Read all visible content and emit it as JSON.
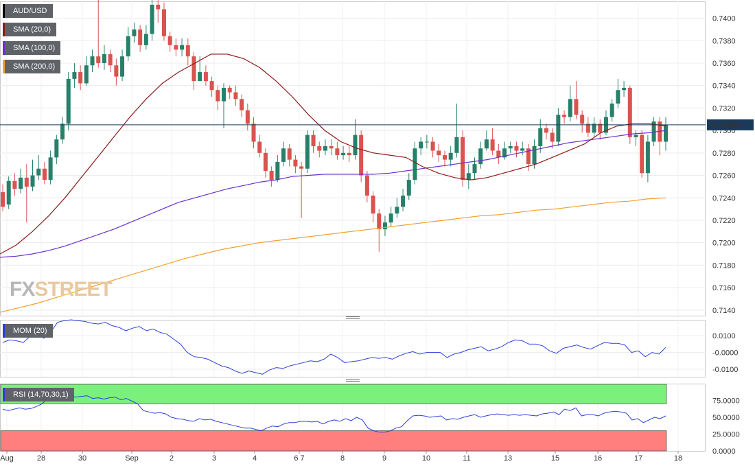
{
  "colors": {
    "up": "#26806a",
    "down": "#d9534f",
    "sma20": "#8b1a1a",
    "sma100": "#6a2fcf",
    "sma200": "#f0a030",
    "price_line": "#1a3a5a",
    "mom_line": "#2c3fd8",
    "rsi_line": "#2c3fd8",
    "rsi_overbought": "#7cf07c",
    "rsi_oversold": "#ff7f7f"
  },
  "legend": {
    "pair": "AUD/USD",
    "sma20": "SMA (20,0)",
    "sma100": "SMA (100,0)",
    "sma200": "SMA (200,0)",
    "mom": "MOM (20)",
    "rsi": "RSI (14,70,30,1)"
  },
  "watermark": {
    "fx": "FX",
    "street": "STREET"
  },
  "chart_data": [
    {
      "type": "candlestick",
      "title": "AUD/USD",
      "last_price_label": "0.730500",
      "ylim": [
        0.7135,
        0.7415
      ],
      "y_ticks": [
        "0.7400",
        "0.7380",
        "0.7360",
        "0.7340",
        "0.7320",
        "0.7300",
        "0.7280",
        "0.7260",
        "0.7240",
        "0.7220",
        "0.7200",
        "0.7180",
        "0.7160",
        "0.7140"
      ],
      "x_labels": [
        "Aug",
        "28",
        "30",
        "Sep",
        "2",
        "3",
        "4",
        "6 7",
        "8",
        "9",
        "10",
        "11",
        "13",
        "15",
        "16",
        "17",
        "18"
      ],
      "candles": [
        [
          0.7245,
          0.7232,
          0.7252,
          0.7228
        ],
        [
          0.7234,
          0.7255,
          0.7259,
          0.723
        ],
        [
          0.7255,
          0.7248,
          0.7262,
          0.7242
        ],
        [
          0.7248,
          0.7258,
          0.7266,
          0.7244
        ],
        [
          0.7258,
          0.725,
          0.727,
          0.7218
        ],
        [
          0.725,
          0.726,
          0.7274,
          0.7246
        ],
        [
          0.726,
          0.7266,
          0.7278,
          0.7256
        ],
        [
          0.7266,
          0.7256,
          0.7272,
          0.7252
        ],
        [
          0.7256,
          0.7276,
          0.7282,
          0.7252
        ],
        [
          0.7276,
          0.7292,
          0.7296,
          0.727
        ],
        [
          0.7292,
          0.7306,
          0.7312,
          0.7288
        ],
        [
          0.7306,
          0.7346,
          0.7352,
          0.73
        ],
        [
          0.7346,
          0.7352,
          0.736,
          0.7338
        ],
        [
          0.7352,
          0.7342,
          0.7358,
          0.7336
        ],
        [
          0.7342,
          0.7358,
          0.7366,
          0.734
        ],
        [
          0.7358,
          0.7366,
          0.7372,
          0.7352
        ],
        [
          0.7366,
          0.736,
          0.7418,
          0.7356
        ],
        [
          0.736,
          0.7368,
          0.7376,
          0.7354
        ],
        [
          0.7368,
          0.7358,
          0.7372,
          0.7352
        ],
        [
          0.7358,
          0.7348,
          0.7364,
          0.734
        ],
        [
          0.7348,
          0.7366,
          0.7372,
          0.7344
        ],
        [
          0.7366,
          0.7384,
          0.7392,
          0.7362
        ],
        [
          0.7384,
          0.739,
          0.7396,
          0.7378
        ],
        [
          0.739,
          0.7376,
          0.7394,
          0.737
        ],
        [
          0.7376,
          0.7386,
          0.7394,
          0.7372
        ],
        [
          0.7386,
          0.7412,
          0.7418,
          0.738
        ],
        [
          0.7412,
          0.7408,
          0.7416,
          0.7396
        ],
        [
          0.7408,
          0.7384,
          0.7414,
          0.738
        ],
        [
          0.7384,
          0.7376,
          0.7388,
          0.737
        ],
        [
          0.7376,
          0.7372,
          0.7382,
          0.7366
        ],
        [
          0.7372,
          0.7376,
          0.7382,
          0.7366
        ],
        [
          0.7376,
          0.7366,
          0.7382,
          0.7358
        ],
        [
          0.7366,
          0.7344,
          0.737,
          0.7336
        ],
        [
          0.7344,
          0.7352,
          0.7366,
          0.7346
        ],
        [
          0.7352,
          0.7344,
          0.7358,
          0.734
        ],
        [
          0.7344,
          0.7336,
          0.7348,
          0.733
        ],
        [
          0.7336,
          0.7326,
          0.734,
          0.7318
        ],
        [
          0.7326,
          0.7338,
          0.7342,
          0.7302
        ],
        [
          0.7338,
          0.7334,
          0.734,
          0.7328
        ],
        [
          0.7334,
          0.7328,
          0.734,
          0.7322
        ],
        [
          0.7328,
          0.7318,
          0.7332,
          0.7312
        ],
        [
          0.7318,
          0.7306,
          0.7324,
          0.73
        ],
        [
          0.7306,
          0.729,
          0.7312,
          0.7284
        ],
        [
          0.729,
          0.728,
          0.7296,
          0.7276
        ],
        [
          0.728,
          0.7264,
          0.7284,
          0.7258
        ],
        [
          0.7264,
          0.7256,
          0.7268,
          0.725
        ],
        [
          0.7256,
          0.7272,
          0.7278,
          0.7254
        ],
        [
          0.7272,
          0.7284,
          0.729,
          0.7268
        ],
        [
          0.7284,
          0.7274,
          0.7288,
          0.7268
        ],
        [
          0.7274,
          0.7268,
          0.7278,
          0.7262
        ],
        [
          0.7268,
          0.7266,
          0.7272,
          0.7222
        ],
        [
          0.7266,
          0.7296,
          0.73,
          0.7262
        ],
        [
          0.7296,
          0.7286,
          0.73,
          0.728
        ],
        [
          0.7286,
          0.7282,
          0.729,
          0.7276
        ],
        [
          0.7282,
          0.7286,
          0.7292,
          0.7278
        ],
        [
          0.7286,
          0.7284,
          0.7292,
          0.7278
        ],
        [
          0.7284,
          0.7278,
          0.729,
          0.7274
        ],
        [
          0.7278,
          0.728,
          0.7286,
          0.7274
        ],
        [
          0.728,
          0.7278,
          0.7286,
          0.7272
        ],
        [
          0.7278,
          0.7296,
          0.731,
          0.7274
        ],
        [
          0.7296,
          0.726,
          0.73,
          0.7254
        ],
        [
          0.726,
          0.7242,
          0.7264,
          0.7236
        ],
        [
          0.7242,
          0.7226,
          0.7246,
          0.7218
        ],
        [
          0.7226,
          0.7212,
          0.723,
          0.7192
        ],
        [
          0.7212,
          0.7218,
          0.7224,
          0.7206
        ],
        [
          0.7218,
          0.7226,
          0.7232,
          0.7214
        ],
        [
          0.7226,
          0.7232,
          0.724,
          0.7222
        ],
        [
          0.7232,
          0.7242,
          0.7248,
          0.7228
        ],
        [
          0.7242,
          0.7256,
          0.7262,
          0.7238
        ],
        [
          0.7256,
          0.7284,
          0.729,
          0.7252
        ],
        [
          0.7284,
          0.729,
          0.7294,
          0.7278
        ],
        [
          0.729,
          0.729,
          0.7296,
          0.7284
        ],
        [
          0.729,
          0.7282,
          0.7294,
          0.7276
        ],
        [
          0.7282,
          0.7278,
          0.7288,
          0.7272
        ],
        [
          0.7278,
          0.7274,
          0.7282,
          0.7268
        ],
        [
          0.7274,
          0.728,
          0.7286,
          0.7268
        ],
        [
          0.728,
          0.7294,
          0.7324,
          0.7276
        ],
        [
          0.7294,
          0.7256,
          0.73,
          0.725
        ],
        [
          0.7256,
          0.7262,
          0.727,
          0.7248
        ],
        [
          0.7262,
          0.727,
          0.7276,
          0.7256
        ],
        [
          0.727,
          0.7284,
          0.729,
          0.7266
        ],
        [
          0.7284,
          0.7292,
          0.73,
          0.7282
        ],
        [
          0.7292,
          0.7282,
          0.7302,
          0.7278
        ],
        [
          0.7282,
          0.7276,
          0.7288,
          0.727
        ],
        [
          0.7276,
          0.7284,
          0.729,
          0.7274
        ],
        [
          0.7284,
          0.7286,
          0.729,
          0.728
        ],
        [
          0.7286,
          0.7282,
          0.729,
          0.7276
        ],
        [
          0.7282,
          0.7284,
          0.729,
          0.7278
        ],
        [
          0.7284,
          0.727,
          0.7288,
          0.7264
        ],
        [
          0.727,
          0.7286,
          0.7292,
          0.7266
        ],
        [
          0.7286,
          0.7302,
          0.731,
          0.728
        ],
        [
          0.7302,
          0.7298,
          0.7306,
          0.7292
        ],
        [
          0.7298,
          0.729,
          0.7302,
          0.7284
        ],
        [
          0.729,
          0.7314,
          0.732,
          0.7286
        ],
        [
          0.7314,
          0.7312,
          0.7318,
          0.7306
        ],
        [
          0.7312,
          0.7328,
          0.734,
          0.7308
        ],
        [
          0.7328,
          0.7314,
          0.7344,
          0.731
        ],
        [
          0.7314,
          0.7306,
          0.7318,
          0.7298
        ],
        [
          0.7306,
          0.7298,
          0.7312,
          0.7294
        ],
        [
          0.7298,
          0.7306,
          0.7312,
          0.7294
        ],
        [
          0.7306,
          0.7298,
          0.731,
          0.7292
        ],
        [
          0.7298,
          0.7312,
          0.7318,
          0.7296
        ],
        [
          0.7312,
          0.7324,
          0.7328,
          0.7308
        ],
        [
          0.7324,
          0.7336,
          0.7346,
          0.732
        ],
        [
          0.7336,
          0.7338,
          0.7344,
          0.733
        ],
        [
          0.7338,
          0.7294,
          0.734,
          0.7288
        ],
        [
          0.7294,
          0.7296,
          0.73,
          0.7286
        ],
        [
          0.7296,
          0.7262,
          0.73,
          0.7258
        ],
        [
          0.7262,
          0.729,
          0.7296,
          0.7254
        ],
        [
          0.729,
          0.7308,
          0.7312,
          0.7286
        ],
        [
          0.7308,
          0.729,
          0.7312,
          0.7278
        ],
        [
          0.729,
          0.7305,
          0.7312,
          0.7282
        ]
      ],
      "sma20": [
        0.719,
        0.7198,
        0.721,
        0.7224,
        0.724,
        0.7258,
        0.7276,
        0.7294,
        0.7312,
        0.7328,
        0.7342,
        0.7352,
        0.736,
        0.7368,
        0.7368,
        0.7364,
        0.7356,
        0.7344,
        0.733,
        0.7314,
        0.73,
        0.729,
        0.7284,
        0.728,
        0.7278,
        0.7276,
        0.7268,
        0.7262,
        0.7258,
        0.7256,
        0.7258,
        0.7262,
        0.7266,
        0.727,
        0.7276,
        0.7282,
        0.7288,
        0.7298,
        0.7304,
        0.7306,
        0.7306,
        0.7304
      ],
      "sma100": [
        0.7187,
        0.7188,
        0.719,
        0.7193,
        0.7197,
        0.7202,
        0.7207,
        0.7212,
        0.7218,
        0.7224,
        0.723,
        0.7236,
        0.724,
        0.7244,
        0.7248,
        0.7251,
        0.7254,
        0.7256,
        0.7259,
        0.726,
        0.7261,
        0.7261,
        0.7261,
        0.7261,
        0.7262,
        0.7264,
        0.7266,
        0.7268,
        0.727,
        0.7272,
        0.7274,
        0.7277,
        0.728,
        0.7283,
        0.7286,
        0.7289,
        0.7291,
        0.7293,
        0.7295,
        0.7297,
        0.7298,
        0.73
      ],
      "sma200": [
        0.7138,
        0.7142,
        0.7146,
        0.7151,
        0.7156,
        0.7161,
        0.7166,
        0.7171,
        0.7176,
        0.7181,
        0.7186,
        0.719,
        0.7194,
        0.7197,
        0.72,
        0.7202,
        0.7204,
        0.7206,
        0.7208,
        0.721,
        0.7212,
        0.7214,
        0.7216,
        0.7218,
        0.722,
        0.7222,
        0.7224,
        0.7225,
        0.7227,
        0.7229,
        0.723,
        0.7232,
        0.7234,
        0.7236,
        0.7237,
        0.7239,
        0.724
      ],
      "current_price": 0.7305
    },
    {
      "type": "line",
      "title": "MOM (20)",
      "ylim": [
        -0.0145,
        0.0195
      ],
      "y_ticks": [
        "0.0100",
        "-0.0000",
        "-0.0100"
      ],
      "values": [
        0.006,
        0.0075,
        0.007,
        0.006,
        0.0095,
        0.011,
        0.0085,
        0.012,
        0.018,
        0.019,
        0.0195,
        0.019,
        0.0185,
        0.0175,
        0.017,
        0.018,
        0.016,
        0.015,
        0.013,
        0.0145,
        0.0155,
        0.013,
        0.014,
        0.012,
        0.011,
        0.008,
        0.005,
        0.0,
        -0.0025,
        -0.003,
        -0.004,
        -0.006,
        -0.008,
        -0.009,
        -0.011,
        -0.0125,
        -0.011,
        -0.012,
        -0.013,
        -0.0105,
        -0.009,
        -0.0095,
        -0.008,
        -0.007,
        -0.006,
        -0.005,
        -0.0055,
        -0.004,
        -0.001,
        -0.003,
        -0.006,
        -0.0055,
        -0.005,
        -0.004,
        -0.003,
        -0.0035,
        -0.003,
        -0.004,
        -0.002,
        -0.0005,
        0.0005,
        -0.001,
        0.0,
        0.0,
        0.0,
        -0.003,
        -0.001,
        0.0,
        0.0015,
        0.0025,
        0.0035,
        0.001,
        0.002,
        0.0035,
        0.006,
        0.0075,
        0.007,
        0.005,
        0.005,
        0.004,
        0.001,
        -0.0005,
        0.0025,
        0.0035,
        0.0045,
        0.003,
        0.002,
        0.004,
        0.006,
        0.0055,
        0.0055,
        0.0045,
        0.0,
        0.001,
        -0.0025,
        0.0,
        -0.001,
        0.003
      ]
    },
    {
      "type": "line",
      "title": "RSI (14,70,30,1)",
      "ylim": [
        0,
        100
      ],
      "y_ticks": [
        "75.0000",
        "50.0000",
        "25.0000",
        "0.0000"
      ],
      "overbought": 70,
      "oversold": 30,
      "values": [
        62,
        60,
        62,
        64,
        62,
        63,
        66,
        70,
        78,
        80,
        82,
        83,
        82,
        80,
        81,
        82,
        78,
        79,
        77,
        79,
        80,
        76,
        78,
        74,
        70,
        60,
        58,
        56,
        57,
        55,
        50,
        48,
        47,
        45,
        44,
        48,
        46,
        47,
        44,
        42,
        40,
        38,
        36,
        34,
        34,
        32,
        30,
        34,
        37,
        36,
        40,
        42,
        42,
        44,
        44,
        43,
        44,
        40,
        44,
        46,
        44,
        48,
        45,
        50,
        46,
        34,
        30,
        28,
        28,
        30,
        34,
        36,
        45,
        52,
        53,
        52,
        50,
        51,
        52,
        46,
        48,
        47,
        50,
        52,
        54,
        50,
        52,
        54,
        55,
        54,
        53,
        54,
        53,
        54,
        53,
        52,
        55,
        56,
        58,
        54,
        62,
        60,
        64,
        52,
        54,
        54,
        52,
        56,
        58,
        59,
        58,
        56,
        46,
        48,
        42,
        46,
        50,
        48,
        52
      ]
    }
  ]
}
